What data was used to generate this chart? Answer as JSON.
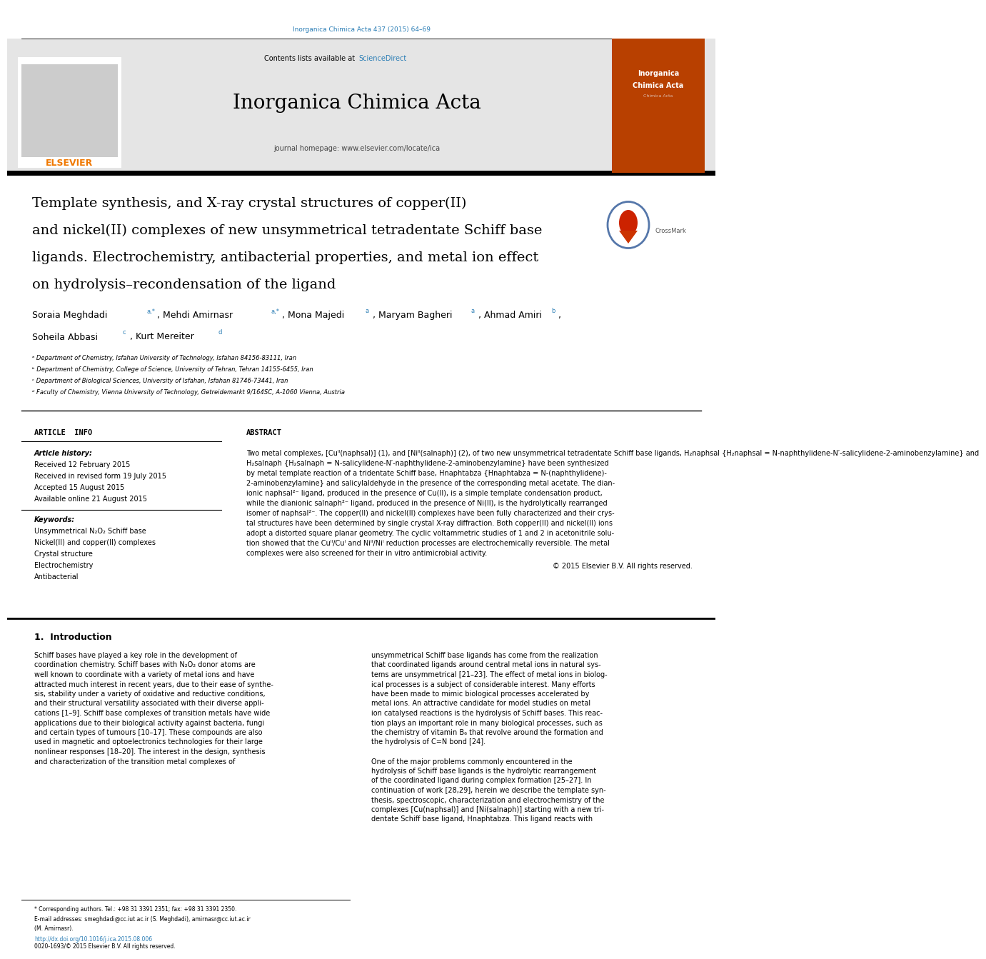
{
  "page_width": 9.92,
  "page_height": 13.23,
  "bg_color": "#ffffff",
  "top_journal_ref": "Inorganica Chimica Acta 437 (2015) 64–69",
  "top_journal_ref_color": "#2a7db5",
  "header_bg_color": "#e5e5e5",
  "contents_text": "Contents lists available at ",
  "sciencedirect_text": "ScienceDirect",
  "sciencedirect_color": "#2a7db5",
  "journal_name": "Inorganica Chimica Acta",
  "journal_homepage": "journal homepage: www.elsevier.com/locate/ica",
  "elsevier_color": "#f07800",
  "article_title_line1": "Template synthesis, and X-ray crystal structures of copper(II)",
  "article_title_line2": "and nickel(II) complexes of new unsymmetrical tetradentate Schiff base",
  "article_title_line3": "ligands. Electrochemistry, antibacterial properties, and metal ion effect",
  "article_title_line4": "on hydrolysis–recondensation of the ligand",
  "author_line1": "Soraia Meghdadi ",
  "author_line1_sup1": "a,*",
  "author_l1_p2": ", Mehdi Amirnasr ",
  "author_l1_sup2": "a,*",
  "author_l1_p3": ", Mona Majedi ",
  "author_l1_sup3": "a",
  "author_l1_p4": ", Maryam Bagheri ",
  "author_l1_sup4": "a",
  "author_l1_p5": ", Ahmad Amiri ",
  "author_l1_sup5": "b",
  "author_l1_p6": ",",
  "author_line2": "Soheila Abbasi ",
  "author_l2_sup1": "c",
  "author_l2_p2": ", Kurt Mereiter ",
  "author_l2_sup2": "d",
  "affil_a": "ᵃ Department of Chemistry, Isfahan University of Technology, Isfahan 84156-83111, Iran",
  "affil_b": "ᵇ Department of Chemistry, College of Science, University of Tehran, Tehran 14155-6455, Iran",
  "affil_c": "ᶜ Department of Biological Sciences, University of Isfahan, Isfahan 81746-73441, Iran",
  "affil_d": "ᵈ Faculty of Chemistry, Vienna University of Technology, Getreidemarkt 9/164SC, A-1060 Vienna, Austria",
  "article_info_label": "ARTICLE  INFO",
  "abstract_label": "ABSTRACT",
  "article_history_label": "Article history:",
  "received_1": "Received 12 February 2015",
  "received_2": "Received in revised form 19 July 2015",
  "accepted": "Accepted 15 August 2015",
  "available": "Available online 21 August 2015",
  "keywords_label": "Keywords:",
  "kw1": "Unsymmetrical N₂O₂ Schiff base",
  "kw2": "Nickel(II) and copper(II) complexes",
  "kw3": "Crystal structure",
  "kw4": "Electrochemistry",
  "kw5": "Antibacterial",
  "abstract_lines": [
    "Two metal complexes, [Cuᴵᴵ(naphsal)] (1), and [Niᴵᴵ(salnaph)] (2), of two new unsymmetrical tetradentate Schiff base ligands, H₂naphsal {H₂naphsal = N-naphthylidene-N′-salicylidene-2-aminobenzylamine} and",
    "H₂salnaph {H₂salnaph = N-salicylidene-N′-naphthylidene-2-aminobenzylamine} have been synthesized",
    "by metal template reaction of a tridentate Schiff base, Hnaphtabza {Hnaphtabza = N-(naphthylidene)-",
    "2-aminobenzylamine} and salicylaldehyde in the presence of the corresponding metal acetate. The dian-",
    "ionic naphsal²⁻ ligand, produced in the presence of Cu(II), is a simple template condensation product,",
    "while the dianionic salnaph²⁻ ligand, produced in the presence of Ni(II), is the hydrolytically rearranged",
    "isomer of naphsal²⁻. The copper(II) and nickel(II) complexes have been fully characterized and their crys-",
    "tal structures have been determined by single crystal X-ray diffraction. Both copper(II) and nickel(II) ions",
    "adopt a distorted square planar geometry. The cyclic voltammetric studies of 1 and 2 in acetonitrile solu-",
    "tion showed that the Cuᴵᴵ/Cuᴵ and Niᴵᴵ/Niᴵ reduction processes are electrochemically reversible. The metal",
    "complexes were also screened for their in vitro antimicrobial activity."
  ],
  "copyright_text": "© 2015 Elsevier B.V. All rights reserved.",
  "intro_section": "1.  Introduction",
  "intro_col1_lines": [
    "Schiff bases have played a key role in the development of",
    "coordination chemistry. Schiff bases with N₂O₂ donor atoms are",
    "well known to coordinate with a variety of metal ions and have",
    "attracted much interest in recent years, due to their ease of synthe-",
    "sis, stability under a variety of oxidative and reductive conditions,",
    "and their structural versatility associated with their diverse appli-",
    "cations [1–9]. Schiff base complexes of transition metals have wide",
    "applications due to their biological activity against bacteria, fungi",
    "and certain types of tumours [10–17]. These compounds are also",
    "used in magnetic and optoelectronics technologies for their large",
    "nonlinear responses [18–20]. The interest in the design, synthesis",
    "and characterization of the transition metal complexes of"
  ],
  "intro_col2_lines": [
    "unsymmetrical Schiff base ligands has come from the realization",
    "that coordinated ligands around central metal ions in natural sys-",
    "tems are unsymmetrical [21–23]. The effect of metal ions in biolog-",
    "ical processes is a subject of considerable interest. Many efforts",
    "have been made to mimic biological processes accelerated by",
    "metal ions. An attractive candidate for model studies on metal",
    "ion catalysed reactions is the hydrolysis of Schiff bases. This reac-",
    "tion plays an important role in many biological processes, such as",
    "the chemistry of vitamin B₆ that revolve around the formation and",
    "the hydrolysis of C=N bond [24].",
    "",
    "One of the major problems commonly encountered in the",
    "hydrolysis of Schiff base ligands is the hydrolytic rearrangement",
    "of the coordinated ligand during complex formation [25–27]. In",
    "continuation of work [28,29], herein we describe the template syn-",
    "thesis, spectroscopic, characterization and electrochemistry of the",
    "complexes [Cu(naphsal)] and [Ni(salnaph)] starting with a new tri-",
    "dentate Schiff base ligand, Hnaphtabza. This ligand reacts with"
  ],
  "footer_corr": "* Corresponding authors. Tel.: +98 31 3391 2351; fax: +98 31 3391 2350.",
  "footer_email1": "E-mail addresses: smeghdadi@cc.iut.ac.ir (S. Meghdadi), amirnasr@cc.iut.ac.ir",
  "footer_email2": "(M. Amirnasr).",
  "footer_doi": "http://dx.doi.org/10.1016/j.ica.2015.08.006",
  "footer_issn": "0020-1693/© 2015 Elsevier B.V. All rights reserved."
}
